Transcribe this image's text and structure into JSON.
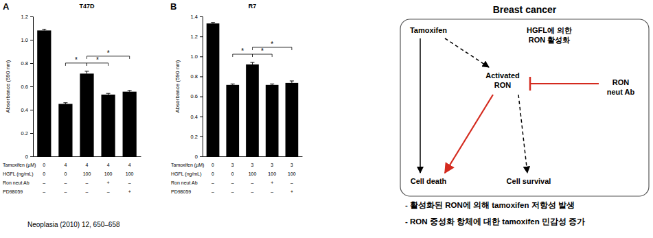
{
  "chart_data": [
    {
      "type": "bar",
      "panel": "A",
      "title": "T47D",
      "y_label": "Absorbance (590 nm)",
      "categories": [
        null,
        null,
        null,
        null,
        null
      ],
      "values": [
        1.08,
        0.45,
        0.71,
        0.53,
        0.555
      ],
      "errors": [
        0.01,
        0.01,
        0.02,
        0.01,
        0.01
      ],
      "color": "#000000",
      "ylim": [
        0,
        1.2
      ],
      "yticks": [
        0,
        0.2,
        0.4,
        0.6,
        0.8,
        {
          "value": 1,
          "label": "1.0"
        },
        1.2
      ],
      "tick_labels": "y",
      "conditions": [
        {
          "label": "Tamoxifen (µM)",
          "values": [
            "0",
            "4",
            "4",
            "4",
            "4"
          ]
        },
        {
          "label": "HGFL (ng/mL)",
          "values": [
            "0",
            "0",
            "100",
            "100",
            "100"
          ]
        },
        {
          "label": "Ron neut Ab",
          "values": [
            "–",
            "–",
            "–",
            "+",
            "–"
          ]
        },
        {
          "label": "PD98059",
          "values": [
            "–",
            "–",
            "–",
            "–",
            "+"
          ]
        }
      ],
      "significance": [
        {
          "from": 1,
          "to": 2,
          "label": "*"
        },
        {
          "from": 2,
          "to": 3,
          "label": "*"
        },
        {
          "from": 2,
          "to": 4,
          "label": "*"
        }
      ]
    },
    {
      "type": "bar",
      "panel": "B",
      "title": "R7",
      "y_label": "Absorbance (590 nm)",
      "categories": [
        null,
        null,
        null,
        null,
        null
      ],
      "values": [
        1.33,
        0.715,
        0.92,
        0.715,
        0.735
      ],
      "errors": [
        0.01,
        0.01,
        0.02,
        0.01,
        0.02
      ],
      "color": "#000000",
      "ylim": [
        0,
        1.4
      ],
      "yticks": [
        0,
        0.2,
        0.4,
        0.6,
        0.8,
        {
          "value": 1,
          "label": "1.0"
        },
        1.2,
        1.4
      ],
      "tick_labels": "y",
      "conditions": [
        {
          "label": "Tamoxifen (µM)",
          "values": [
            "0",
            "3",
            "3",
            "3",
            "3"
          ]
        },
        {
          "label": "HGFL (ng/mL)",
          "values": [
            "0",
            "0",
            "100",
            "100",
            "100"
          ]
        },
        {
          "label": "Ron neut Ab",
          "values": [
            "–",
            "–",
            "–",
            "+",
            "–"
          ]
        },
        {
          "label": "PD98059",
          "values": [
            "–",
            "–",
            "–",
            "–",
            "+"
          ]
        }
      ],
      "significance": [
        {
          "from": 1,
          "to": 2,
          "label": "*"
        },
        {
          "from": 2,
          "to": 3,
          "label": "*"
        },
        {
          "from": 2,
          "to": 4,
          "label": "*"
        }
      ]
    }
  ],
  "citation": "Neoplasia (2010) 12, 650–658",
  "diagram": {
    "title": "Breast cancer",
    "nodes": [
      [
        "Tamoxifen"
      ],
      [
        "HGFL에 의한",
        "RON 활성화"
      ],
      [
        "Activated",
        "RON"
      ],
      [
        "RON",
        "neut Ab"
      ],
      [
        "Cell death"
      ],
      [
        "Cell survival"
      ]
    ],
    "notes": [
      "- 활성화된 RON에 의해 tamoxifen 저항성 발생",
      "- RON 중성화 항체에 대한 tamoxifen 민감성 증가"
    ]
  }
}
